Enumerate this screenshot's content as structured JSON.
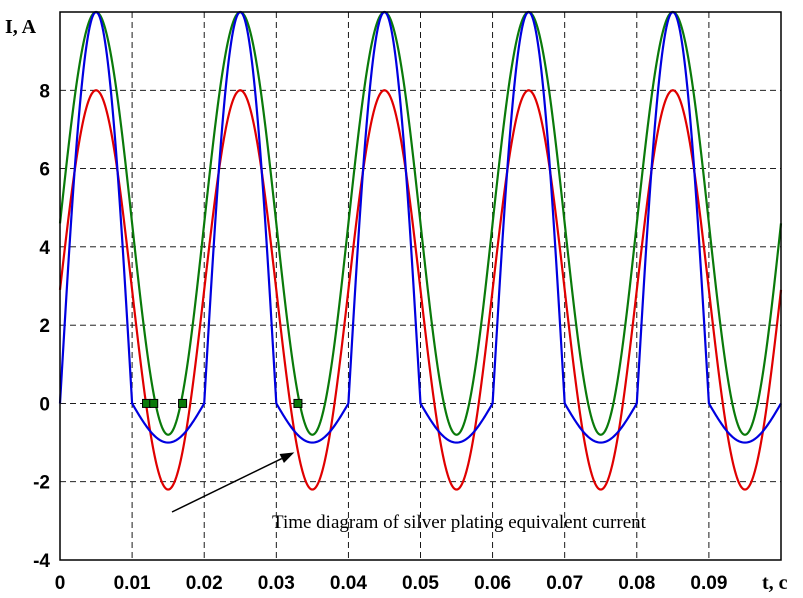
{
  "chart_data": {
    "type": "line",
    "title": "",
    "xlabel": "t, c",
    "ylabel": "I, A",
    "xlim": [
      0,
      0.1
    ],
    "ylim": [
      -4,
      10
    ],
    "x_ticks": [
      "0",
      "0.01",
      "0.02",
      "0.03",
      "0.04",
      "0.05",
      "0.06",
      "0.07",
      "0.08",
      "0.09"
    ],
    "y_ticks": [
      "-4",
      "-2",
      "0",
      "2",
      "4",
      "6",
      "8"
    ],
    "grid": true,
    "period": 0.02,
    "series": [
      {
        "color": "#e00000",
        "shape": "sinusoid",
        "amplitude": 5.1,
        "offset": 2.9,
        "x": [
          0,
          0.0025,
          0.005,
          0.0075,
          0.01,
          0.0125,
          0.015,
          0.0175,
          0.02
        ],
        "y": [
          2.9,
          6.5,
          8.0,
          6.5,
          2.9,
          -0.7,
          -2.2,
          -0.7,
          2.9
        ]
      },
      {
        "color": "#0a7a0a",
        "shape": "sinusoid",
        "amplitude": 5.4,
        "offset": 4.6,
        "x": [
          0,
          0.0025,
          0.005,
          0.0075,
          0.01,
          0.0125,
          0.015,
          0.0175,
          0.02
        ],
        "y": [
          4.6,
          8.4,
          10.0,
          8.4,
          4.6,
          0.8,
          -0.8,
          0.8,
          4.6
        ]
      },
      {
        "color": "#0000e0",
        "shape": "clipped-sinusoid",
        "x": [
          0,
          0.0025,
          0.005,
          0.0075,
          0.01,
          0.0125,
          0.015,
          0.0175,
          0.02
        ],
        "y": [
          0,
          7.1,
          10.0,
          7.1,
          0,
          -0.6,
          -1.0,
          -0.6,
          0
        ]
      }
    ],
    "markers": {
      "color": "#0a7a0a",
      "points": [
        [
          0.012,
          0
        ],
        [
          0.013,
          0
        ],
        [
          0.017,
          0
        ],
        [
          0.033,
          0
        ]
      ]
    },
    "annotations": [
      {
        "text": "Time diagram of silver plating equivalent current",
        "arrow_to": [
          0.0325,
          -1.2
        ]
      }
    ]
  }
}
